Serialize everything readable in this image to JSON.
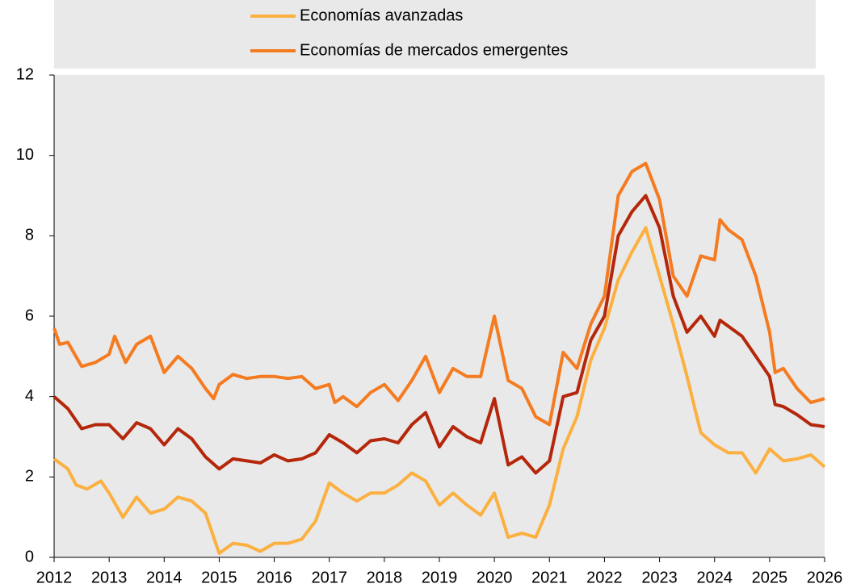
{
  "chart_data": {
    "type": "line",
    "series": [
      {
        "name": "Economías avanzadas",
        "color": "#fbb040",
        "x": [
          2012.0,
          2012.25,
          2012.4,
          2012.6,
          2012.85,
          2013.0,
          2013.25,
          2013.5,
          2013.75,
          2014.0,
          2014.25,
          2014.5,
          2014.75,
          2015.0,
          2015.25,
          2015.5,
          2015.75,
          2016.0,
          2016.25,
          2016.5,
          2016.75,
          2017.0,
          2017.25,
          2017.5,
          2017.75,
          2018.0,
          2018.25,
          2018.5,
          2018.75,
          2019.0,
          2019.25,
          2019.5,
          2019.75,
          2020.0,
          2020.25,
          2020.5,
          2020.75,
          2021.0,
          2021.25,
          2021.5,
          2021.75,
          2022.0,
          2022.25,
          2022.5,
          2022.75,
          2023.0,
          2023.25,
          2023.5,
          2023.75,
          2024.0,
          2024.25,
          2024.5,
          2024.75,
          2025.0,
          2025.25,
          2025.5,
          2025.75,
          2026.0
        ],
        "values": [
          2.45,
          2.2,
          1.8,
          1.7,
          1.9,
          1.6,
          1.0,
          1.5,
          1.1,
          1.2,
          1.5,
          1.4,
          1.1,
          0.1,
          0.35,
          0.3,
          0.15,
          0.35,
          0.35,
          0.45,
          0.9,
          1.85,
          1.6,
          1.4,
          1.6,
          1.6,
          1.8,
          2.1,
          1.9,
          1.3,
          1.6,
          1.3,
          1.05,
          1.6,
          0.5,
          0.6,
          0.5,
          1.3,
          2.7,
          3.5,
          4.9,
          5.7,
          6.9,
          7.6,
          8.2,
          7.0,
          5.8,
          4.5,
          3.1,
          2.8,
          2.6,
          2.6,
          2.1,
          2.7,
          2.4,
          2.45,
          2.55,
          2.25
        ]
      },
      {
        "name": "Economías de mercados emergentes",
        "color": "#f47b20",
        "x": [
          2012.0,
          2012.1,
          2012.25,
          2012.5,
          2012.75,
          2013.0,
          2013.1,
          2013.3,
          2013.5,
          2013.75,
          2014.0,
          2014.25,
          2014.5,
          2014.75,
          2014.9,
          2015.0,
          2015.25,
          2015.5,
          2015.75,
          2016.0,
          2016.25,
          2016.5,
          2016.75,
          2017.0,
          2017.1,
          2017.25,
          2017.5,
          2017.75,
          2018.0,
          2018.25,
          2018.5,
          2018.75,
          2019.0,
          2019.25,
          2019.5,
          2019.75,
          2020.0,
          2020.25,
          2020.5,
          2020.75,
          2021.0,
          2021.25,
          2021.5,
          2021.75,
          2022.0,
          2022.25,
          2022.5,
          2022.75,
          2023.0,
          2023.25,
          2023.5,
          2023.75,
          2024.0,
          2024.1,
          2024.25,
          2024.5,
          2024.75,
          2025.0,
          2025.1,
          2025.25,
          2025.5,
          2025.75,
          2026.0
        ],
        "values": [
          5.7,
          5.3,
          5.35,
          4.75,
          4.85,
          5.05,
          5.5,
          4.85,
          5.3,
          5.5,
          4.6,
          5.0,
          4.7,
          4.2,
          3.95,
          4.3,
          4.55,
          4.45,
          4.5,
          4.5,
          4.45,
          4.5,
          4.2,
          4.3,
          3.85,
          4.0,
          3.75,
          4.1,
          4.3,
          3.9,
          4.4,
          5.0,
          4.1,
          4.7,
          4.5,
          4.5,
          6.0,
          4.4,
          4.2,
          3.5,
          3.3,
          5.1,
          4.7,
          5.8,
          6.5,
          9.0,
          9.6,
          9.8,
          8.9,
          7.0,
          6.5,
          7.5,
          7.4,
          8.4,
          8.15,
          7.9,
          7.0,
          5.6,
          4.6,
          4.7,
          4.2,
          3.85,
          3.95
        ]
      },
      {
        "color": "#b5270b",
        "x": [
          2012.0,
          2012.25,
          2012.5,
          2012.75,
          2013.0,
          2013.25,
          2013.5,
          2013.75,
          2014.0,
          2014.25,
          2014.5,
          2014.75,
          2015.0,
          2015.25,
          2015.5,
          2015.75,
          2016.0,
          2016.25,
          2016.5,
          2016.75,
          2017.0,
          2017.25,
          2017.5,
          2017.75,
          2018.0,
          2018.25,
          2018.5,
          2018.75,
          2019.0,
          2019.25,
          2019.5,
          2019.75,
          2020.0,
          2020.25,
          2020.5,
          2020.75,
          2021.0,
          2021.25,
          2021.5,
          2021.75,
          2022.0,
          2022.25,
          2022.5,
          2022.75,
          2023.0,
          2023.25,
          2023.5,
          2023.75,
          2024.0,
          2024.1,
          2024.25,
          2024.5,
          2024.75,
          2025.0,
          2025.1,
          2025.25,
          2025.5,
          2025.75,
          2026.0
        ],
        "values": [
          4.0,
          3.7,
          3.2,
          3.3,
          3.3,
          2.95,
          3.35,
          3.2,
          2.8,
          3.2,
          2.95,
          2.5,
          2.2,
          2.45,
          2.4,
          2.35,
          2.55,
          2.4,
          2.45,
          2.6,
          3.05,
          2.85,
          2.6,
          2.9,
          2.95,
          2.85,
          3.3,
          3.6,
          2.75,
          3.25,
          3.0,
          2.85,
          3.95,
          2.3,
          2.5,
          2.1,
          2.4,
          4.0,
          4.1,
          5.4,
          6.0,
          8.0,
          8.6,
          9.0,
          8.2,
          6.5,
          5.6,
          6.0,
          5.5,
          5.9,
          5.75,
          5.5,
          5.0,
          4.5,
          3.8,
          3.75,
          3.55,
          3.3,
          3.25
        ]
      }
    ],
    "xlim": [
      2012,
      2026
    ],
    "xticks": [
      2012,
      2013,
      2014,
      2015,
      2016,
      2017,
      2018,
      2019,
      2020,
      2021,
      2022,
      2023,
      2024,
      2025,
      2026
    ],
    "ylim": [
      0,
      12
    ],
    "yticks": [
      0,
      2,
      4,
      6,
      8,
      10,
      12
    ]
  }
}
